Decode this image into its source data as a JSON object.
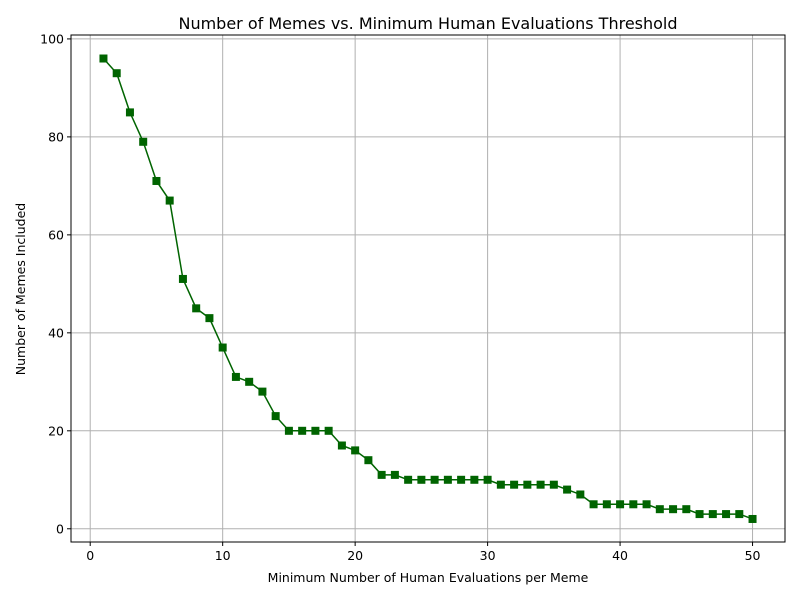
{
  "chart_data": {
    "type": "line",
    "title": "Number of Memes vs. Minimum Human Evaluations Threshold",
    "xlabel": "Minimum Number of Human Evaluations per Meme",
    "ylabel": "Number of Memes Included",
    "xlim": [
      -1.45,
      52.45
    ],
    "ylim": [
      -2.7,
      100.8
    ],
    "xticks": [
      0,
      10,
      20,
      30,
      40,
      50
    ],
    "yticks": [
      0,
      20,
      40,
      60,
      80,
      100
    ],
    "grid": true,
    "marker": "square",
    "series": [
      {
        "color": "#006400",
        "x": [
          1,
          2,
          3,
          4,
          5,
          6,
          7,
          8,
          9,
          10,
          11,
          12,
          13,
          14,
          15,
          16,
          17,
          18,
          19,
          20,
          21,
          22,
          23,
          24,
          25,
          26,
          27,
          28,
          29,
          30,
          31,
          32,
          33,
          34,
          35,
          36,
          37,
          38,
          39,
          40,
          41,
          42,
          43,
          44,
          45,
          46,
          47,
          48,
          49,
          50
        ],
        "y": [
          96,
          93,
          85,
          79,
          71,
          67,
          51,
          45,
          43,
          37,
          31,
          30,
          28,
          23,
          20,
          20,
          20,
          20,
          17,
          16,
          14,
          11,
          11,
          10,
          10,
          10,
          10,
          10,
          10,
          10,
          9,
          9,
          9,
          9,
          9,
          8,
          7,
          5,
          5,
          5,
          5,
          5,
          4,
          4,
          4,
          3,
          3,
          3,
          3,
          2
        ]
      }
    ]
  }
}
